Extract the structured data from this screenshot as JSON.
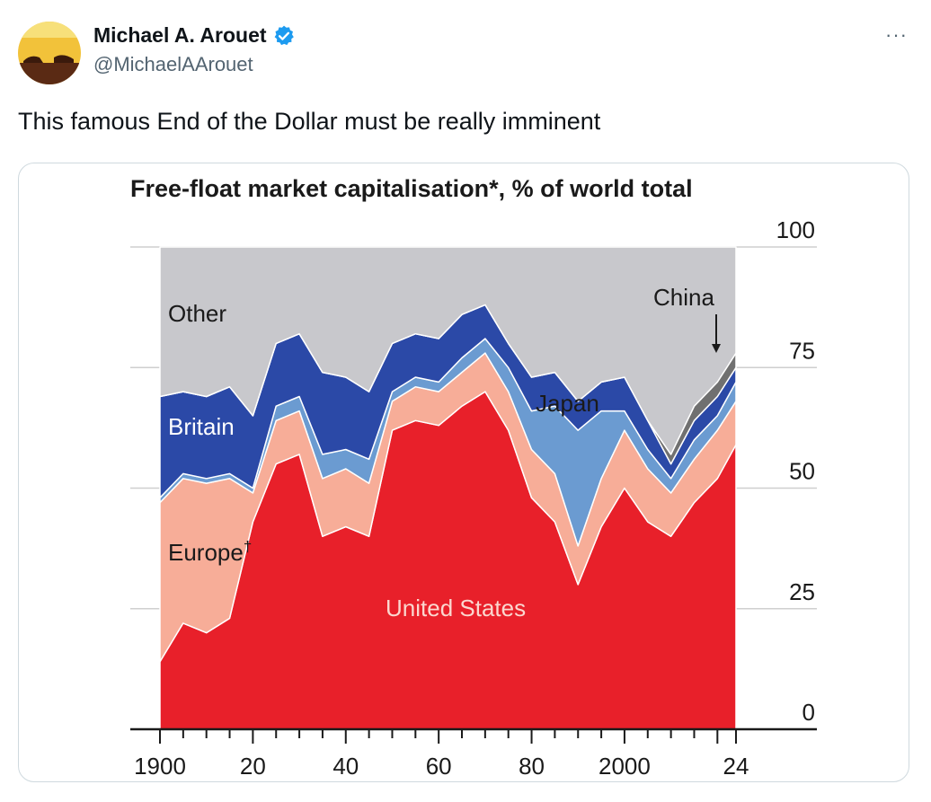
{
  "tweet": {
    "author_name": "Michael A. Arouet",
    "author_handle": "@MichaelAArouet",
    "verified_icon": "verified-badge-icon",
    "more_icon": "more-icon",
    "more_label": "···",
    "text": "This famous End of the Dollar must be really imminent"
  },
  "chart_data": {
    "type": "area",
    "stacked": true,
    "title": "Free-float market capitalisation*, % of world total",
    "xlabel": "",
    "ylabel": "",
    "xlim": [
      1900,
      2024
    ],
    "ylim": [
      0,
      100
    ],
    "x_ticks": [
      "1900",
      "20",
      "40",
      "60",
      "80",
      "2000",
      "24"
    ],
    "y_ticks": [
      "0",
      "25",
      "50",
      "75",
      "100"
    ],
    "grid": true,
    "x": [
      1900,
      1905,
      1910,
      1915,
      1920,
      1925,
      1930,
      1935,
      1940,
      1945,
      1950,
      1955,
      1960,
      1965,
      1970,
      1975,
      1980,
      1985,
      1990,
      1995,
      2000,
      2005,
      2010,
      2015,
      2020,
      2024
    ],
    "series": [
      {
        "name": "United States",
        "color": "#e8202a",
        "values": [
          14,
          22,
          20,
          23,
          43,
          55,
          57,
          40,
          42,
          40,
          62,
          64,
          63,
          67,
          70,
          62,
          48,
          43,
          30,
          42,
          50,
          43,
          40,
          47,
          52,
          59
        ]
      },
      {
        "name": "Europe†",
        "color": "#f7ad98",
        "values": [
          33,
          30,
          31,
          29,
          6,
          9,
          9,
          12,
          12,
          11,
          6,
          7,
          7,
          7,
          8,
          8,
          10,
          10,
          8,
          10,
          12,
          11,
          9,
          9,
          10,
          9
        ]
      },
      {
        "name": "Japan",
        "color": "#6b9bd1",
        "values": [
          1,
          1,
          1,
          1,
          1,
          3,
          3,
          5,
          4,
          5,
          2,
          2,
          2,
          3,
          3,
          5,
          8,
          14,
          24,
          14,
          4,
          4,
          3,
          4,
          3,
          4
        ]
      },
      {
        "name": "Britain",
        "color": "#2b49a7",
        "values": [
          21,
          17,
          17,
          18,
          15,
          13,
          13,
          17,
          15,
          14,
          10,
          9,
          9,
          9,
          7,
          5,
          7,
          7,
          6,
          6,
          7,
          6,
          3,
          4,
          4,
          3
        ]
      },
      {
        "name": "China",
        "color": "#707070",
        "values": [
          0,
          0,
          0,
          0,
          0,
          0,
          0,
          0,
          0,
          0,
          0,
          0,
          0,
          0,
          0,
          0,
          0,
          0,
          0,
          0,
          0,
          0,
          2,
          3,
          3,
          3
        ]
      },
      {
        "name": "Other",
        "color": "#c8c8cc",
        "values": [
          31,
          30,
          31,
          29,
          35,
          20,
          18,
          26,
          27,
          30,
          20,
          18,
          19,
          14,
          12,
          20,
          27,
          26,
          32,
          28,
          27,
          36,
          43,
          33,
          28,
          22
        ]
      }
    ],
    "labels": {
      "other": "Other",
      "britain": "Britain",
      "europe": "Europe",
      "europe_mark": "†",
      "us": "United States",
      "japan": "Japan",
      "china": "China"
    }
  }
}
